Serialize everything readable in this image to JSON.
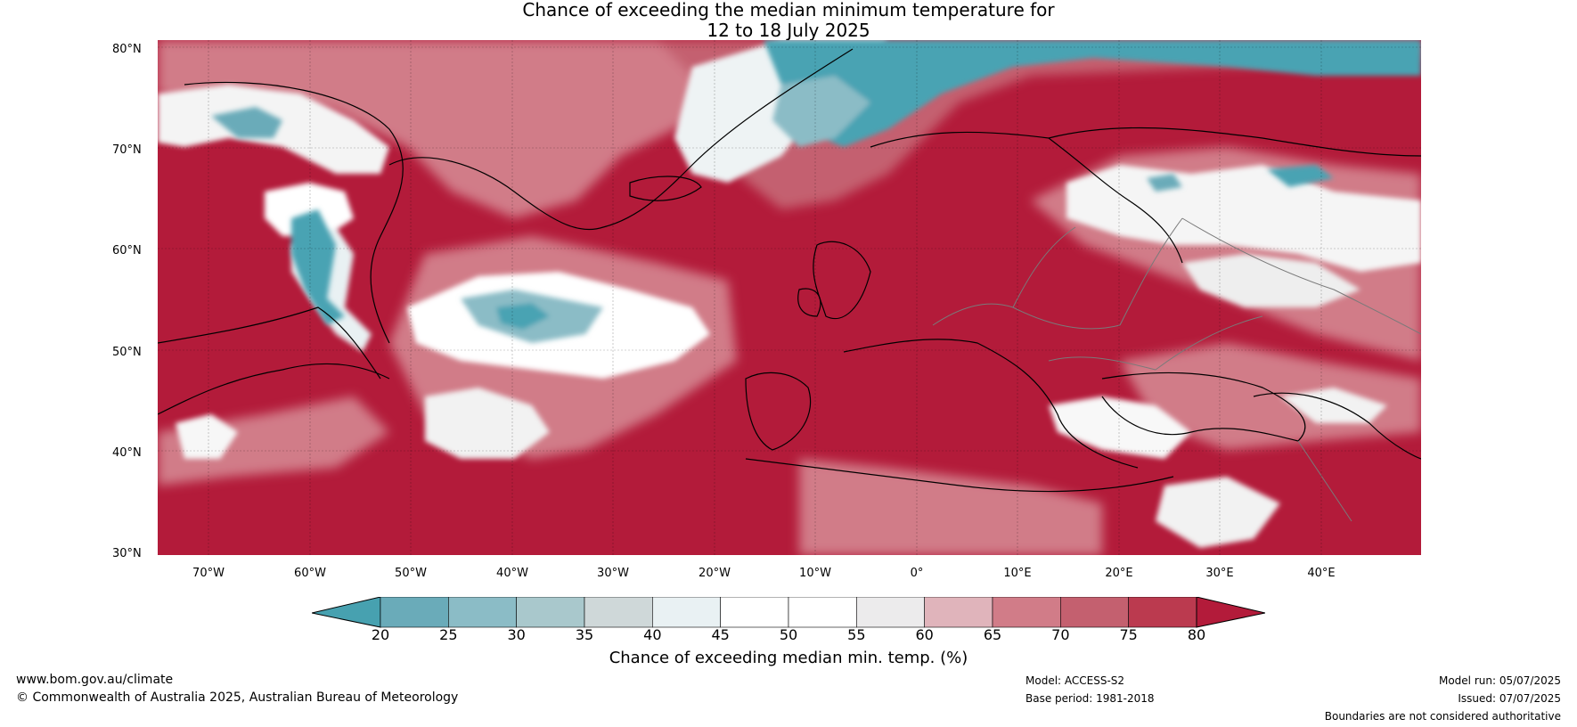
{
  "title_line1": "Chance of exceeding the median minimum temperature for",
  "title_line2": "12 to 18 July 2025",
  "map": {
    "latitude_labels": [
      "80°N",
      "70°N",
      "60°N",
      "50°N",
      "40°N",
      "30°N"
    ],
    "longitude_labels": [
      "70°W",
      "60°W",
      "50°W",
      "40°W",
      "30°W",
      "20°W",
      "10°W",
      "0°",
      "10°E",
      "20°E",
      "30°E",
      "40°E"
    ],
    "lat_range": [
      30,
      81
    ],
    "lon_range": [
      -75,
      50
    ],
    "dominant_color": "#b31b3a",
    "below_median_color": "#4aa3b3",
    "near_median_color": "#ffffff"
  },
  "colorbar": {
    "ticks": [
      "20",
      "25",
      "30",
      "35",
      "40",
      "45",
      "50",
      "55",
      "60",
      "65",
      "70",
      "75",
      "80"
    ],
    "colors": [
      "#3d9aac",
      "#6aabb9",
      "#8bbcc6",
      "#a9c8cc",
      "#cfd8d9",
      "#e9f1f3",
      "#ffffff",
      "#ffffff",
      "#ecebec",
      "#e0b4bb",
      "#d17c88",
      "#c4606f",
      "#bb3a4f"
    ],
    "low_extend_color": "#47a1b0",
    "high_extend_color": "#b31b3a",
    "label": "Chance of exceeding median min. temp. (%)"
  },
  "footer": {
    "website": "www.bom.gov.au/climate",
    "copyright": "© Commonwealth of Australia 2025, Australian Bureau of Meteorology",
    "model": "Model: ACCESS-S2",
    "base_period": "Base period: 1981-2018",
    "model_run": "Model run: 05/07/2025",
    "issued": "Issued: 07/07/2025",
    "disclaimer": "Boundaries are not considered authoritative"
  }
}
